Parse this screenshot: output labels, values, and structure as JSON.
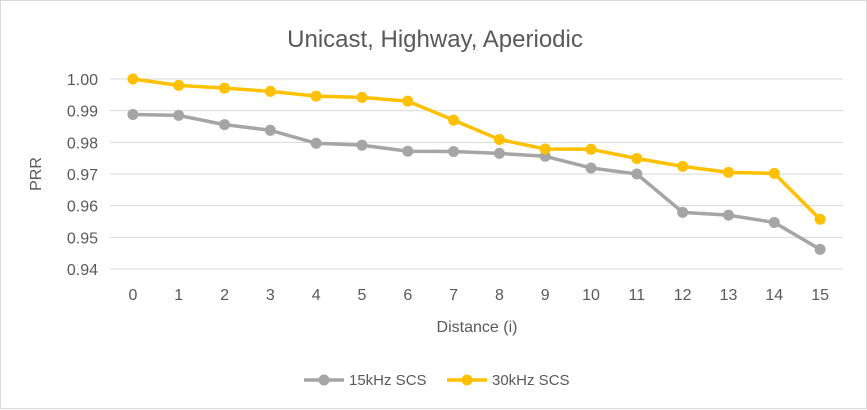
{
  "chart_data": {
    "type": "line",
    "title": "Unicast, Highway, Aperiodic",
    "xlabel": "Distance (i)",
    "ylabel": "PRR",
    "categories": [
      "0",
      "1",
      "2",
      "3",
      "4",
      "5",
      "6",
      "7",
      "8",
      "9",
      "10",
      "11",
      "12",
      "13",
      "14",
      "15"
    ],
    "ylim": [
      0.94,
      1.0
    ],
    "yticks": [
      "0.94",
      "0.95",
      "0.96",
      "0.97",
      "0.98",
      "0.99",
      "1.00"
    ],
    "grid": "horizontal",
    "legend_position": "bottom",
    "series": [
      {
        "name": "15kHz SCS",
        "color": "#a5a5a5",
        "values": [
          0.9888,
          0.9885,
          0.9856,
          0.9838,
          0.9797,
          0.9791,
          0.9772,
          0.9771,
          0.9765,
          0.9756,
          0.9719,
          0.97,
          0.9579,
          0.957,
          0.9547,
          0.9462
        ]
      },
      {
        "name": "30kHz SCS",
        "color": "#ffc000",
        "values": [
          1.0,
          0.998,
          0.9971,
          0.9961,
          0.9946,
          0.9942,
          0.993,
          0.987,
          0.9809,
          0.9779,
          0.9778,
          0.9749,
          0.9724,
          0.9705,
          0.9702,
          0.9557
        ]
      }
    ]
  }
}
